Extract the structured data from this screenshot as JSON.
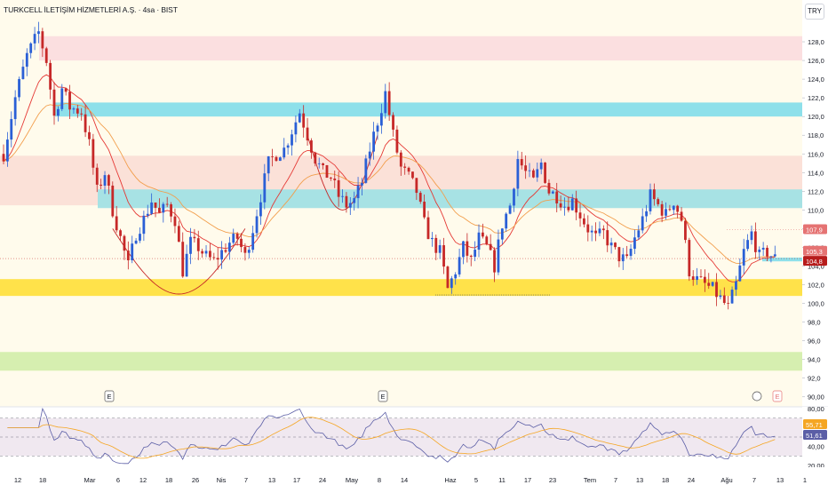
{
  "header": {
    "title": "TURKCELL İLETİŞİM HİZMETLERİ A.Ş. · 4sa · BIST",
    "currency": "TRY"
  },
  "chart_data": [
    {
      "type": "candlestick",
      "price_axis": {
        "ylim": [
          89.5,
          130.0
        ],
        "ticks": [
          "128,0",
          "126,0",
          "124,0",
          "122,0",
          "120,0",
          "118,0",
          "116,0",
          "114,0",
          "112,0",
          "110,0",
          "108,0",
          "106,0",
          "104,0",
          "102,0",
          "100,0",
          "98,0",
          "96,0",
          "94,0",
          "92,0",
          "90,00"
        ]
      },
      "time_axis_labels": [
        "12",
        "18",
        "Mar",
        "6",
        "12",
        "18",
        "26",
        "Nis",
        "7",
        "13",
        "17",
        "24",
        "May",
        "8",
        "14",
        "Haz",
        "5",
        "11",
        "17",
        "23",
        "Tem",
        "7",
        "13",
        "18",
        "24",
        "Ağu",
        "7",
        "13",
        "1"
      ],
      "price_labels": [
        {
          "text": "107,9",
          "value": 107.9,
          "color": "#e57373"
        },
        {
          "text": "105,3",
          "value": 105.3,
          "color": "#e57373"
        },
        {
          "text": "104,8",
          "value": 104.8,
          "color": "#b71c1c"
        }
      ],
      "zones": [
        {
          "from": 126.0,
          "to": 128.6,
          "color": "#fbdfe0"
        },
        {
          "from": 120.0,
          "to": 121.5,
          "color": "#8ee0ea"
        },
        {
          "from": 110.5,
          "to": 115.8,
          "color": "#fbe1d8"
        },
        {
          "from": 110.2,
          "to": 112.2,
          "color": "#a7e2e4"
        },
        {
          "from": 100.8,
          "to": 102.6,
          "color": "#ffe24a"
        },
        {
          "from": 92.8,
          "to": 94.8,
          "color": "#d6efb0"
        },
        {
          "from": 104.5,
          "to": 104.9,
          "color": "#8ee0ea"
        }
      ],
      "earnings_markers": [
        "E",
        "E",
        "E"
      ],
      "close_series": [
        {
          "t": 0,
          "c": 116.0
        },
        {
          "t": 3,
          "c": 122.0
        },
        {
          "t": 6,
          "c": 126.5
        },
        {
          "t": 9,
          "c": 129.0
        },
        {
          "t": 11,
          "c": 126.0
        },
        {
          "t": 13,
          "c": 120.0
        },
        {
          "t": 15,
          "c": 123.0
        },
        {
          "t": 17,
          "c": 121.0
        },
        {
          "t": 20,
          "c": 120.5
        },
        {
          "t": 22,
          "c": 117.0
        },
        {
          "t": 24,
          "c": 112.0
        },
        {
          "t": 26,
          "c": 114.0
        },
        {
          "t": 28,
          "c": 110.0
        },
        {
          "t": 30,
          "c": 107.0
        },
        {
          "t": 32,
          "c": 104.0
        },
        {
          "t": 34,
          "c": 107.5
        },
        {
          "t": 36,
          "c": 109.0
        },
        {
          "t": 38,
          "c": 111.0
        },
        {
          "t": 40,
          "c": 109.5
        },
        {
          "t": 42,
          "c": 110.5
        },
        {
          "t": 44,
          "c": 109.0
        },
        {
          "t": 46,
          "c": 103.5
        },
        {
          "t": 48,
          "c": 106.5
        },
        {
          "t": 50,
          "c": 106.0
        },
        {
          "t": 52,
          "c": 105.0
        },
        {
          "t": 54,
          "c": 104.5
        },
        {
          "t": 56,
          "c": 105.5
        },
        {
          "t": 58,
          "c": 106.5
        },
        {
          "t": 60,
          "c": 107.0
        },
        {
          "t": 62,
          "c": 105.0
        },
        {
          "t": 64,
          "c": 108.0
        },
        {
          "t": 66,
          "c": 111.5
        },
        {
          "t": 68,
          "c": 115.0
        },
        {
          "t": 70,
          "c": 116.0
        },
        {
          "t": 72,
          "c": 116.5
        },
        {
          "t": 74,
          "c": 118.5
        },
        {
          "t": 76,
          "c": 120.5
        },
        {
          "t": 78,
          "c": 118.0
        },
        {
          "t": 80,
          "c": 115.5
        },
        {
          "t": 82,
          "c": 114.0
        },
        {
          "t": 84,
          "c": 113.5
        },
        {
          "t": 86,
          "c": 111.5
        },
        {
          "t": 88,
          "c": 110.5
        },
        {
          "t": 90,
          "c": 111.0
        },
        {
          "t": 92,
          "c": 113.0
        },
        {
          "t": 94,
          "c": 116.5
        },
        {
          "t": 96,
          "c": 119.5
        },
        {
          "t": 98,
          "c": 122.5
        },
        {
          "t": 100,
          "c": 118.0
        },
        {
          "t": 102,
          "c": 114.5
        },
        {
          "t": 104,
          "c": 113.5
        },
        {
          "t": 106,
          "c": 112.0
        },
        {
          "t": 108,
          "c": 108.5
        },
        {
          "t": 110,
          "c": 106.5
        },
        {
          "t": 112,
          "c": 105.5
        },
        {
          "t": 114,
          "c": 101.5
        },
        {
          "t": 116,
          "c": 103.5
        },
        {
          "t": 118,
          "c": 106.0
        },
        {
          "t": 120,
          "c": 104.5
        },
        {
          "t": 122,
          "c": 107.0
        },
        {
          "t": 124,
          "c": 106.0
        },
        {
          "t": 126,
          "c": 104.0
        },
        {
          "t": 128,
          "c": 108.5
        },
        {
          "t": 130,
          "c": 110.5
        },
        {
          "t": 132,
          "c": 115.5
        },
        {
          "t": 134,
          "c": 114.0
        },
        {
          "t": 136,
          "c": 113.0
        },
        {
          "t": 138,
          "c": 115.0
        },
        {
          "t": 140,
          "c": 112.0
        },
        {
          "t": 142,
          "c": 111.5
        },
        {
          "t": 144,
          "c": 110.5
        },
        {
          "t": 146,
          "c": 111.0
        },
        {
          "t": 148,
          "c": 109.5
        },
        {
          "t": 150,
          "c": 108.0
        },
        {
          "t": 152,
          "c": 107.0
        },
        {
          "t": 154,
          "c": 107.5
        },
        {
          "t": 156,
          "c": 106.0
        },
        {
          "t": 158,
          "c": 105.0
        },
        {
          "t": 160,
          "c": 104.5
        },
        {
          "t": 162,
          "c": 107.0
        },
        {
          "t": 164,
          "c": 109.0
        },
        {
          "t": 166,
          "c": 111.5
        },
        {
          "t": 168,
          "c": 110.5
        },
        {
          "t": 170,
          "c": 109.5
        },
        {
          "t": 172,
          "c": 111.0
        },
        {
          "t": 174,
          "c": 109.0
        },
        {
          "t": 176,
          "c": 103.5
        },
        {
          "t": 178,
          "c": 102.5
        },
        {
          "t": 180,
          "c": 102.0
        },
        {
          "t": 182,
          "c": 101.5
        },
        {
          "t": 184,
          "c": 100.5
        },
        {
          "t": 186,
          "c": 99.5
        },
        {
          "t": 188,
          "c": 102.0
        },
        {
          "t": 190,
          "c": 105.5
        },
        {
          "t": 192,
          "c": 107.5
        },
        {
          "t": 194,
          "c": 105.0
        },
        {
          "t": 196,
          "c": 105.5
        },
        {
          "t": 198,
          "c": 104.8
        }
      ]
    },
    {
      "type": "line",
      "indicator": "oscillator",
      "ylim": [
        18,
        82
      ],
      "ticks": [
        "80,00",
        "40,00",
        "20,00"
      ],
      "levels": [
        70,
        50,
        30
      ],
      "value_labels": [
        {
          "text": "55,71",
          "color": "#f5a623"
        },
        {
          "text": "51,61",
          "color": "#5b5ea6"
        }
      ]
    }
  ]
}
